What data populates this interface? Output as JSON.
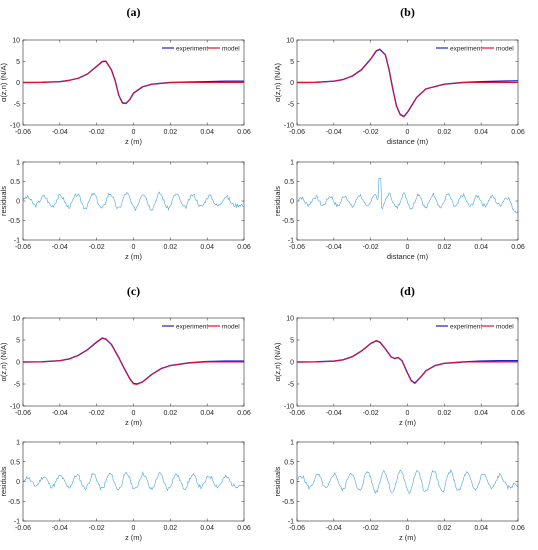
{
  "colors": {
    "experiment": "#1f1fd0",
    "model": "#e8102a",
    "residuals": "#4aa3df",
    "axis": "#262626",
    "zero_line": "#b3b3b3"
  },
  "chart_data": [
    {
      "id": "a",
      "label": "(a)",
      "type": "line",
      "xlabel": "z (m)",
      "ylabel": "α(z,n) (N/A)",
      "xlim": [
        -0.06,
        0.06
      ],
      "ylim": [
        -10,
        10
      ],
      "xticks": [
        "-0.06",
        "-0.04",
        "-0.02",
        "0",
        "0.02",
        "0.04",
        "0.06"
      ],
      "yticks": [
        "10",
        "5",
        "0",
        "-5",
        "-10"
      ],
      "legend": "top-right",
      "series": [
        {
          "name": "experiment",
          "x": [
            -0.06,
            -0.05,
            -0.04,
            -0.035,
            -0.03,
            -0.025,
            -0.02,
            -0.017,
            -0.015,
            -0.012,
            -0.01,
            -0.008,
            -0.006,
            -0.004,
            -0.002,
            0,
            0.005,
            0.01,
            0.02,
            0.03,
            0.04,
            0.05,
            0.06
          ],
          "y": [
            0,
            0.05,
            0.2,
            0.5,
            1,
            2,
            3.8,
            4.9,
            5,
            3,
            0.5,
            -3,
            -4.8,
            -4.9,
            -4,
            -2.5,
            -1,
            -0.4,
            0,
            0.1,
            0.2,
            0.3,
            0.3
          ]
        },
        {
          "name": "model",
          "x": [
            -0.06,
            -0.05,
            -0.04,
            -0.035,
            -0.03,
            -0.025,
            -0.02,
            -0.017,
            -0.015,
            -0.012,
            -0.01,
            -0.008,
            -0.006,
            -0.004,
            -0.002,
            0,
            0.005,
            0.01,
            0.02,
            0.03,
            0.04,
            0.05,
            0.06
          ],
          "y": [
            0,
            0,
            0.2,
            0.5,
            1,
            2,
            3.8,
            5,
            5.1,
            3,
            0.5,
            -3,
            -4.9,
            -5,
            -4,
            -2.5,
            -1,
            -0.4,
            0,
            0,
            0,
            0,
            0
          ]
        }
      ]
    },
    {
      "id": "a-res",
      "type": "line",
      "xlabel": "z (m)",
      "ylabel": "residuals",
      "xlim": [
        -0.06,
        0.06
      ],
      "ylim": [
        -1,
        1
      ],
      "xticks": [
        "-0.06",
        "-0.04",
        "-0.02",
        "0",
        "0.02",
        "0.04",
        "0.06"
      ],
      "yticks": [
        "1",
        "0.5",
        "0",
        "-0.5",
        "-1"
      ],
      "residual": {
        "amp": 0.2,
        "period": 0.009,
        "noise": 0.05,
        "seed": 3
      }
    },
    {
      "id": "b",
      "label": "(b)",
      "type": "line",
      "xlabel": "distance (m)",
      "ylabel": "α(z,n) (N/A)",
      "xlim": [
        -0.06,
        0.06
      ],
      "ylim": [
        -10,
        10
      ],
      "xticks": [
        "-0.06",
        "-0.04",
        "-0.02",
        "0",
        "0.02",
        "0.04",
        "0.06"
      ],
      "yticks": [
        "10",
        "5",
        "0",
        "-5",
        "-10"
      ],
      "legend": "top-right",
      "series": [
        {
          "name": "experiment",
          "x": [
            -0.06,
            -0.05,
            -0.04,
            -0.035,
            -0.03,
            -0.025,
            -0.02,
            -0.017,
            -0.015,
            -0.012,
            -0.01,
            -0.008,
            -0.006,
            -0.004,
            -0.002,
            0,
            0.005,
            0.01,
            0.02,
            0.03,
            0.04,
            0.05,
            0.06
          ],
          "y": [
            0,
            0.05,
            0.3,
            0.7,
            1.5,
            3,
            5.5,
            7.4,
            7.8,
            6.5,
            3,
            -1.5,
            -5.5,
            -7.5,
            -8,
            -7,
            -3.5,
            -1.5,
            -0.4,
            0,
            0.2,
            0.3,
            0.4
          ]
        },
        {
          "name": "model",
          "x": [
            -0.06,
            -0.05,
            -0.04,
            -0.035,
            -0.03,
            -0.025,
            -0.02,
            -0.017,
            -0.015,
            -0.012,
            -0.01,
            -0.008,
            -0.006,
            -0.004,
            -0.002,
            0,
            0.005,
            0.01,
            0.02,
            0.03,
            0.04,
            0.05,
            0.06
          ],
          "y": [
            0,
            0,
            0.3,
            0.7,
            1.5,
            3,
            5.5,
            7.5,
            7.9,
            6.5,
            3,
            -1.5,
            -5.6,
            -7.6,
            -8.1,
            -7,
            -3.5,
            -1.5,
            -0.4,
            0,
            0,
            0,
            0
          ]
        }
      ]
    },
    {
      "id": "b-res",
      "type": "line",
      "xlabel": "distance (m)",
      "ylabel": "residuals",
      "xlim": [
        -0.06,
        0.06
      ],
      "ylim": [
        -1,
        1
      ],
      "xticks": [
        "-0.06",
        "-0.04",
        "-0.02",
        "0",
        "0.02",
        "0.04",
        "0.06"
      ],
      "yticks": [
        "1",
        "0.5",
        "0",
        "-0.5",
        "-1"
      ],
      "residual": {
        "amp": 0.18,
        "period": 0.008,
        "noise": 0.05,
        "seed": 7,
        "spike_x": -0.015,
        "spike_y": 0.58
      }
    },
    {
      "id": "c",
      "label": "(c)",
      "type": "line",
      "xlabel": "z (m)",
      "ylabel": "α(z,n) (N/A)",
      "xlim": [
        -0.06,
        0.06
      ],
      "ylim": [
        -10,
        10
      ],
      "xticks": [
        "-0.06",
        "-0.04",
        "-0.02",
        "0",
        "0.02",
        "0.04",
        "0.06"
      ],
      "yticks": [
        "10",
        "5",
        "0",
        "-5",
        "-10"
      ],
      "legend": "top-right",
      "series": [
        {
          "name": "experiment",
          "x": [
            -0.06,
            -0.05,
            -0.04,
            -0.035,
            -0.03,
            -0.025,
            -0.02,
            -0.017,
            -0.015,
            -0.012,
            -0.01,
            -0.008,
            -0.005,
            -0.002,
            0,
            0.002,
            0.005,
            0.01,
            0.015,
            0.02,
            0.03,
            0.04,
            0.05,
            0.06
          ],
          "y": [
            0,
            0.05,
            0.3,
            0.7,
            1.5,
            2.8,
            4.5,
            5.4,
            5.2,
            4,
            2.5,
            1,
            -1.5,
            -3.8,
            -4.9,
            -5,
            -4.5,
            -2.8,
            -1.5,
            -0.8,
            -0.2,
            0.1,
            0.2,
            0.2
          ]
        },
        {
          "name": "model",
          "x": [
            -0.06,
            -0.05,
            -0.04,
            -0.035,
            -0.03,
            -0.025,
            -0.02,
            -0.017,
            -0.015,
            -0.012,
            -0.01,
            -0.008,
            -0.005,
            -0.002,
            0,
            0.002,
            0.005,
            0.01,
            0.015,
            0.02,
            0.03,
            0.04,
            0.05,
            0.06
          ],
          "y": [
            0,
            0,
            0.3,
            0.7,
            1.5,
            2.8,
            4.6,
            5.5,
            5.3,
            4,
            2.5,
            1,
            -1.5,
            -3.9,
            -5,
            -5.1,
            -4.5,
            -2.8,
            -1.5,
            -0.8,
            -0.2,
            0,
            0,
            0
          ]
        }
      ]
    },
    {
      "id": "c-res",
      "type": "line",
      "xlabel": "z (m)",
      "ylabel": "residuals",
      "xlim": [
        -0.06,
        0.06
      ],
      "ylim": [
        -1,
        1
      ],
      "xticks": [
        "-0.06",
        "-0.04",
        "-0.02",
        "0",
        "0.02",
        "0.04",
        "0.06"
      ],
      "yticks": [
        "1",
        "0.5",
        "0",
        "-0.5",
        "-1"
      ],
      "residual": {
        "amp": 0.2,
        "period": 0.009,
        "noise": 0.05,
        "seed": 11
      }
    },
    {
      "id": "d",
      "label": "(d)",
      "type": "line",
      "xlabel": "z (m)",
      "ylabel": "α(z,n) (N/A)",
      "xlim": [
        -0.06,
        0.06
      ],
      "ylim": [
        -10,
        10
      ],
      "xticks": [
        "-0.06",
        "-0.04",
        "-0.02",
        "0",
        "0.02",
        "0.04",
        "0.06"
      ],
      "yticks": [
        "10",
        "5",
        "0",
        "-5",
        "-10"
      ],
      "legend": "top-right",
      "series": [
        {
          "name": "experiment",
          "x": [
            -0.06,
            -0.05,
            -0.04,
            -0.035,
            -0.03,
            -0.025,
            -0.02,
            -0.017,
            -0.015,
            -0.012,
            -0.009,
            -0.007,
            -0.005,
            -0.003,
            0,
            0.002,
            0.004,
            0.007,
            0.01,
            0.015,
            0.02,
            0.03,
            0.04,
            0.05,
            0.06
          ],
          "y": [
            0,
            0.05,
            0.2,
            0.5,
            1.2,
            2.5,
            4.2,
            4.8,
            4.5,
            3,
            1.2,
            0.8,
            1,
            0.3,
            -2.5,
            -4.2,
            -4.8,
            -3.5,
            -2,
            -0.8,
            -0.3,
            0,
            0.2,
            0.3,
            0.3
          ]
        },
        {
          "name": "model",
          "x": [
            -0.06,
            -0.05,
            -0.04,
            -0.035,
            -0.03,
            -0.025,
            -0.02,
            -0.017,
            -0.015,
            -0.012,
            -0.009,
            -0.007,
            -0.005,
            -0.003,
            0,
            0.002,
            0.004,
            0.007,
            0.01,
            0.015,
            0.02,
            0.03,
            0.04,
            0.05,
            0.06
          ],
          "y": [
            0,
            0,
            0.2,
            0.5,
            1.2,
            2.5,
            4.2,
            4.9,
            4.6,
            3,
            1.2,
            0.8,
            1,
            0.3,
            -2.6,
            -4.3,
            -4.9,
            -3.5,
            -2,
            -0.8,
            -0.3,
            0,
            0,
            0,
            0
          ]
        }
      ]
    },
    {
      "id": "d-res",
      "type": "line",
      "xlabel": "z (m)",
      "ylabel": "residuals",
      "xlim": [
        -0.06,
        0.06
      ],
      "ylim": [
        -1,
        1
      ],
      "xticks": [
        "-0.06",
        "-0.04",
        "-0.02",
        "0",
        "0.02",
        "0.04",
        "0.06"
      ],
      "yticks": [
        "1",
        "0.5",
        "0",
        "-0.5",
        "-1"
      ],
      "residual": {
        "amp": 0.28,
        "period": 0.009,
        "noise": 0.05,
        "seed": 5
      }
    }
  ]
}
